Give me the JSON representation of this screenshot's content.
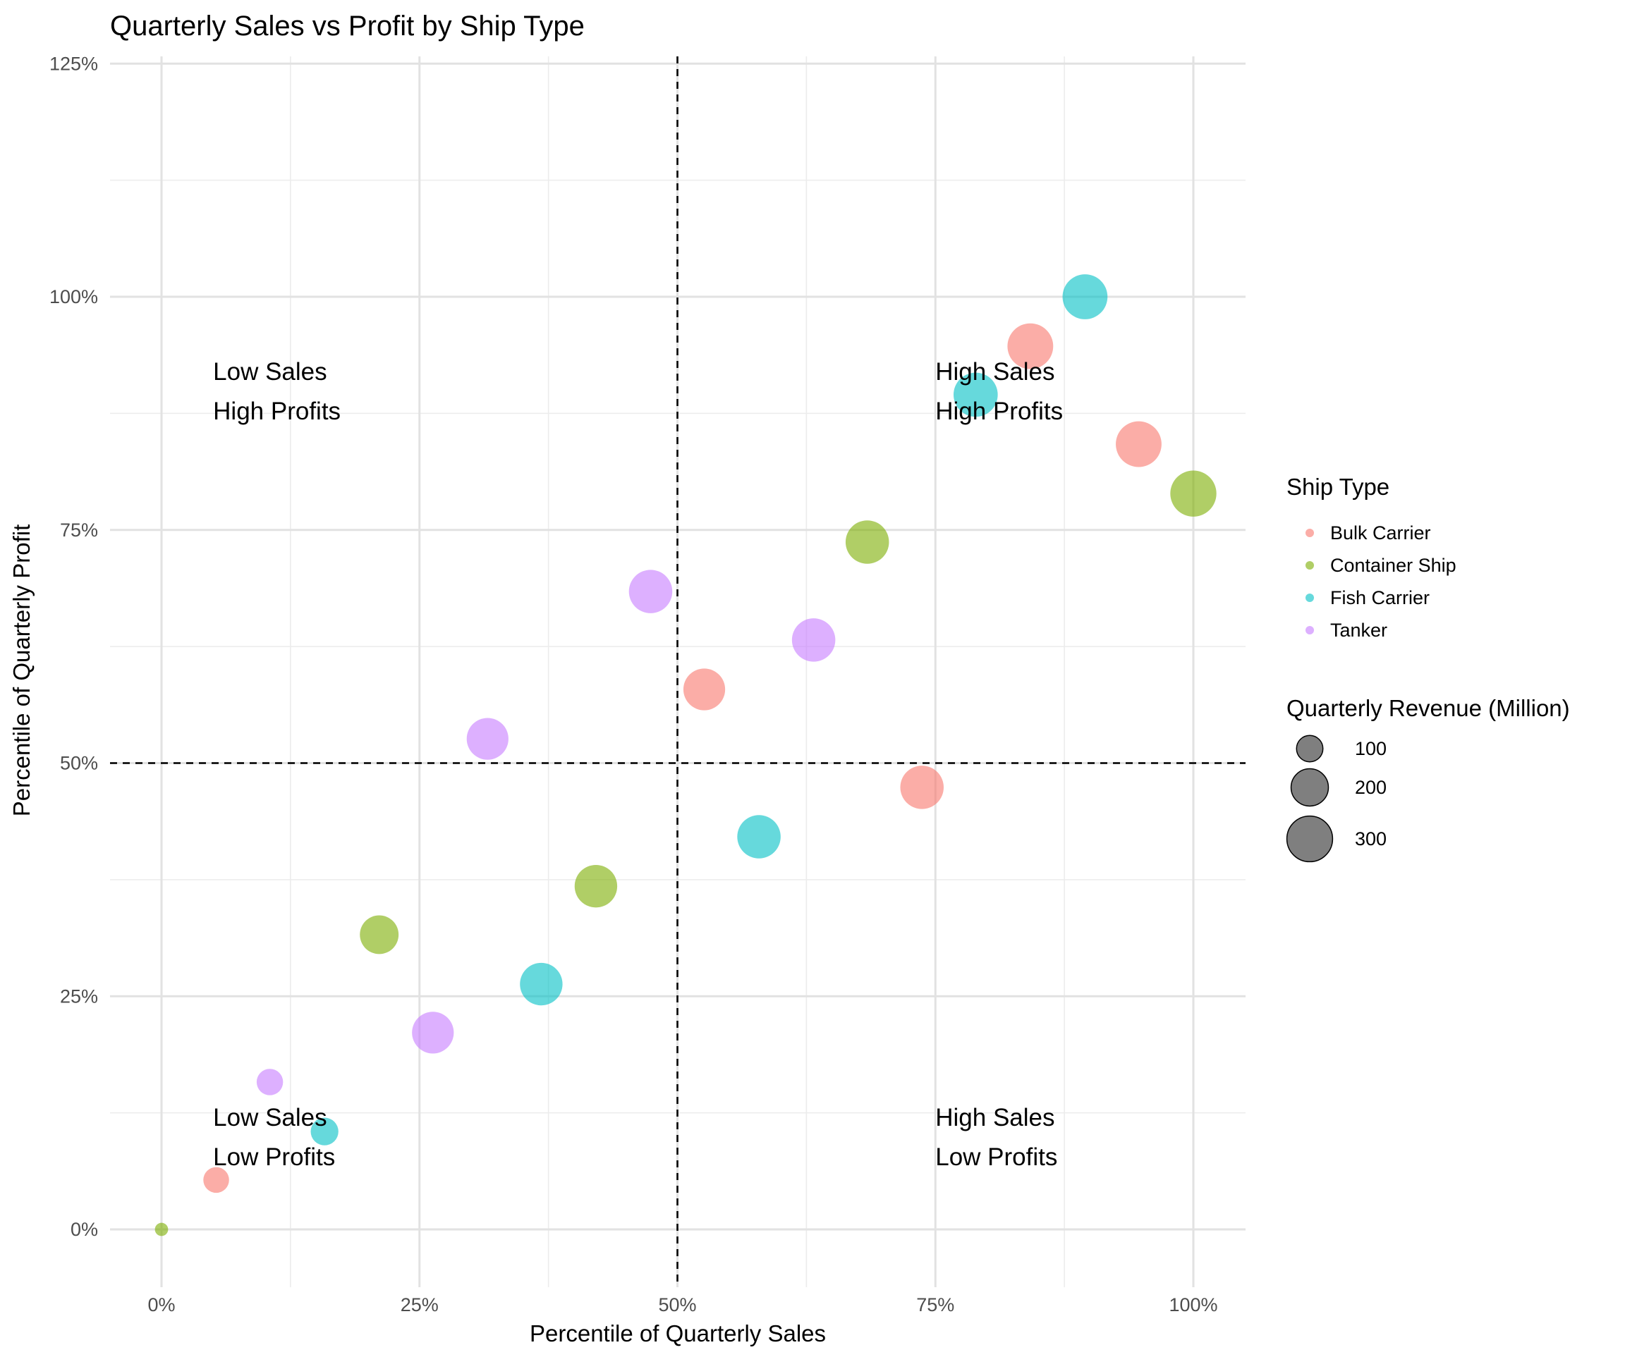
{
  "chart_data": {
    "type": "scatter",
    "title": "Quarterly Sales vs Profit by Ship Type",
    "xlabel": "Percentile of Quarterly Sales",
    "ylabel": "Percentile of Quarterly Profit",
    "xlim": [
      -0.05,
      1.05
    ],
    "ylim": [
      -0.06,
      1.25
    ],
    "x_ticks": [
      {
        "value": 0,
        "label": "0%"
      },
      {
        "value": 0.25,
        "label": "25%"
      },
      {
        "value": 0.5,
        "label": "50%"
      },
      {
        "value": 0.75,
        "label": "75%"
      },
      {
        "value": 1.0,
        "label": "100%"
      }
    ],
    "y_ticks": [
      {
        "value": 0,
        "label": "0%"
      },
      {
        "value": 0.25,
        "label": "25%"
      },
      {
        "value": 0.5,
        "label": "50%"
      },
      {
        "value": 0.75,
        "label": "75%"
      },
      {
        "value": 1.0,
        "label": "100%"
      },
      {
        "value": 1.25,
        "label": "125%"
      }
    ],
    "reference_lines": {
      "x": 0.5,
      "y": 0.5,
      "style": "dashed"
    },
    "quadrant_labels": [
      {
        "x": 0.05,
        "y": 0.92,
        "lines": [
          "Low Sales",
          "High Profits"
        ]
      },
      {
        "x": 0.75,
        "y": 0.92,
        "lines": [
          "High Sales",
          "High Profits"
        ]
      },
      {
        "x": 0.05,
        "y": 0.12,
        "lines": [
          "Low Sales",
          "Low Profits"
        ]
      },
      {
        "x": 0.75,
        "y": 0.12,
        "lines": [
          "High Sales",
          "Low Profits"
        ]
      }
    ],
    "grid": true,
    "legend": {
      "placement": "right",
      "color_title": "Ship Type",
      "size_title": "Quarterly Revenue (Million)",
      "size_entries": [
        100,
        200,
        300
      ]
    },
    "size_range": [
      0,
      330
    ],
    "series": [
      {
        "name": "Bulk Carrier",
        "color": "#F8766D",
        "points": [
          {
            "x": 0.053,
            "y": 0.053,
            "size": 95
          },
          {
            "x": 0.526,
            "y": 0.579,
            "size": 250
          },
          {
            "x": 0.737,
            "y": 0.474,
            "size": 270
          },
          {
            "x": 0.842,
            "y": 0.947,
            "size": 300
          },
          {
            "x": 0.947,
            "y": 0.842,
            "size": 300
          }
        ]
      },
      {
        "name": "Container Ship",
        "color": "#7CAE00",
        "points": [
          {
            "x": 0.0,
            "y": 0.0,
            "size": 25
          },
          {
            "x": 0.211,
            "y": 0.316,
            "size": 215
          },
          {
            "x": 0.421,
            "y": 0.368,
            "size": 260
          },
          {
            "x": 0.684,
            "y": 0.737,
            "size": 270
          },
          {
            "x": 1.0,
            "y": 0.789,
            "size": 305
          }
        ]
      },
      {
        "name": "Fish Carrier",
        "color": "#00BFC4",
        "points": [
          {
            "x": 0.158,
            "y": 0.105,
            "size": 110
          },
          {
            "x": 0.368,
            "y": 0.263,
            "size": 260
          },
          {
            "x": 0.579,
            "y": 0.421,
            "size": 270
          },
          {
            "x": 0.789,
            "y": 0.895,
            "size": 280
          },
          {
            "x": 0.895,
            "y": 1.0,
            "size": 290
          }
        ]
      },
      {
        "name": "Tanker",
        "color": "#C77CFF",
        "points": [
          {
            "x": 0.105,
            "y": 0.158,
            "size": 100
          },
          {
            "x": 0.263,
            "y": 0.211,
            "size": 250
          },
          {
            "x": 0.316,
            "y": 0.526,
            "size": 250
          },
          {
            "x": 0.474,
            "y": 0.684,
            "size": 270
          },
          {
            "x": 0.632,
            "y": 0.632,
            "size": 270
          }
        ]
      }
    ]
  }
}
